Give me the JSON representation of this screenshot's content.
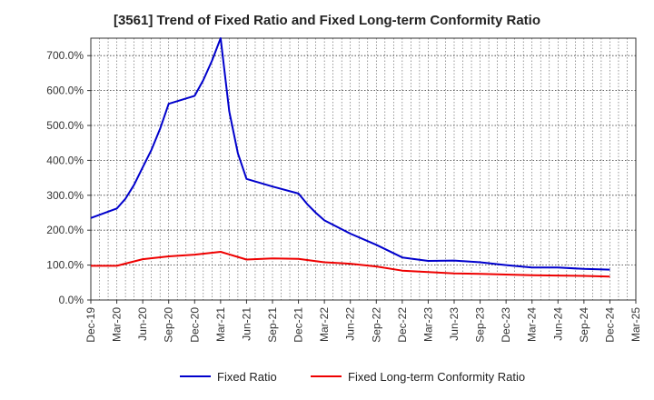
{
  "chart_data": {
    "type": "line",
    "title": "[3561]  Trend of Fixed Ratio and Fixed Long-term Conformity Ratio",
    "xlabel": "",
    "ylabel": "",
    "ylim": [
      0,
      750
    ],
    "y_ticks": [
      "0.0%",
      "100.0%",
      "200.0%",
      "300.0%",
      "400.0%",
      "500.0%",
      "600.0%",
      "700.0%"
    ],
    "x_ticks": [
      "Dec-19",
      "Mar-20",
      "Jun-20",
      "Sep-20",
      "Dec-20",
      "Mar-21",
      "Jun-21",
      "Sep-21",
      "Dec-21",
      "Mar-22",
      "Jun-22",
      "Sep-22",
      "Dec-22",
      "Mar-23",
      "Jun-23",
      "Sep-23",
      "Dec-23",
      "Mar-24",
      "Jun-24",
      "Sep-24",
      "Dec-24",
      "Mar-25"
    ],
    "x_months_from_start": [
      0,
      1,
      2,
      3,
      4,
      5,
      6,
      7,
      8,
      9,
      10,
      11,
      12,
      13,
      14,
      15,
      16,
      17,
      18,
      19,
      20,
      21,
      22,
      23,
      24,
      25,
      26,
      27,
      28,
      29,
      30,
      31,
      32,
      33,
      34,
      35,
      36,
      37,
      38,
      39,
      40,
      41,
      42,
      43,
      44,
      45,
      46,
      47,
      48,
      49,
      50,
      51,
      52,
      53,
      54,
      55,
      56,
      57,
      58,
      59,
      60
    ],
    "grid": true,
    "legend_position": "bottom",
    "series": [
      {
        "name": "Fixed Ratio",
        "color": "#0000cc",
        "points": [
          [
            "Dec-19",
            235
          ],
          [
            "Mar-20",
            262
          ],
          [
            "Apr-20",
            290
          ],
          [
            "May-20",
            330
          ],
          [
            "Jun-20",
            380
          ],
          [
            "Jul-20",
            430
          ],
          [
            "Aug-20",
            490
          ],
          [
            "Sep-20",
            562
          ],
          [
            "Dec-20",
            585
          ],
          [
            "Jan-21",
            630
          ],
          [
            "Feb-21",
            685
          ],
          [
            "Mar-21",
            750
          ],
          [
            "Apr-21",
            540
          ],
          [
            "May-21",
            420
          ],
          [
            "Jun-21",
            347
          ],
          [
            "Sep-21",
            325
          ],
          [
            "Dec-21",
            305
          ],
          [
            "Jan-22",
            275
          ],
          [
            "Feb-22",
            250
          ],
          [
            "Mar-22",
            228
          ],
          [
            "Jun-22",
            190
          ],
          [
            "Sep-22",
            158
          ],
          [
            "Dec-22",
            122
          ],
          [
            "Mar-23",
            112
          ],
          [
            "Jun-23",
            113
          ],
          [
            "Sep-23",
            108
          ],
          [
            "Dec-23",
            100
          ],
          [
            "Mar-24",
            93
          ],
          [
            "Jun-24",
            93
          ],
          [
            "Sep-24",
            89
          ],
          [
            "Dec-24",
            87
          ]
        ]
      },
      {
        "name": "Fixed Long-term Conformity Ratio",
        "color": "#ee0000",
        "points": [
          [
            "Dec-19",
            98
          ],
          [
            "Mar-20",
            98
          ],
          [
            "Jun-20",
            117
          ],
          [
            "Sep-20",
            125
          ],
          [
            "Dec-20",
            130
          ],
          [
            "Mar-21",
            138
          ],
          [
            "Jun-21",
            116
          ],
          [
            "Sep-21",
            119
          ],
          [
            "Dec-21",
            118
          ],
          [
            "Mar-22",
            108
          ],
          [
            "Jun-22",
            104
          ],
          [
            "Sep-22",
            96
          ],
          [
            "Dec-22",
            84
          ],
          [
            "Mar-23",
            80
          ],
          [
            "Jun-23",
            76
          ],
          [
            "Sep-23",
            75
          ],
          [
            "Dec-23",
            73
          ],
          [
            "Mar-24",
            71
          ],
          [
            "Jun-24",
            70
          ],
          [
            "Sep-24",
            69
          ],
          [
            "Dec-24",
            67
          ]
        ]
      }
    ]
  }
}
